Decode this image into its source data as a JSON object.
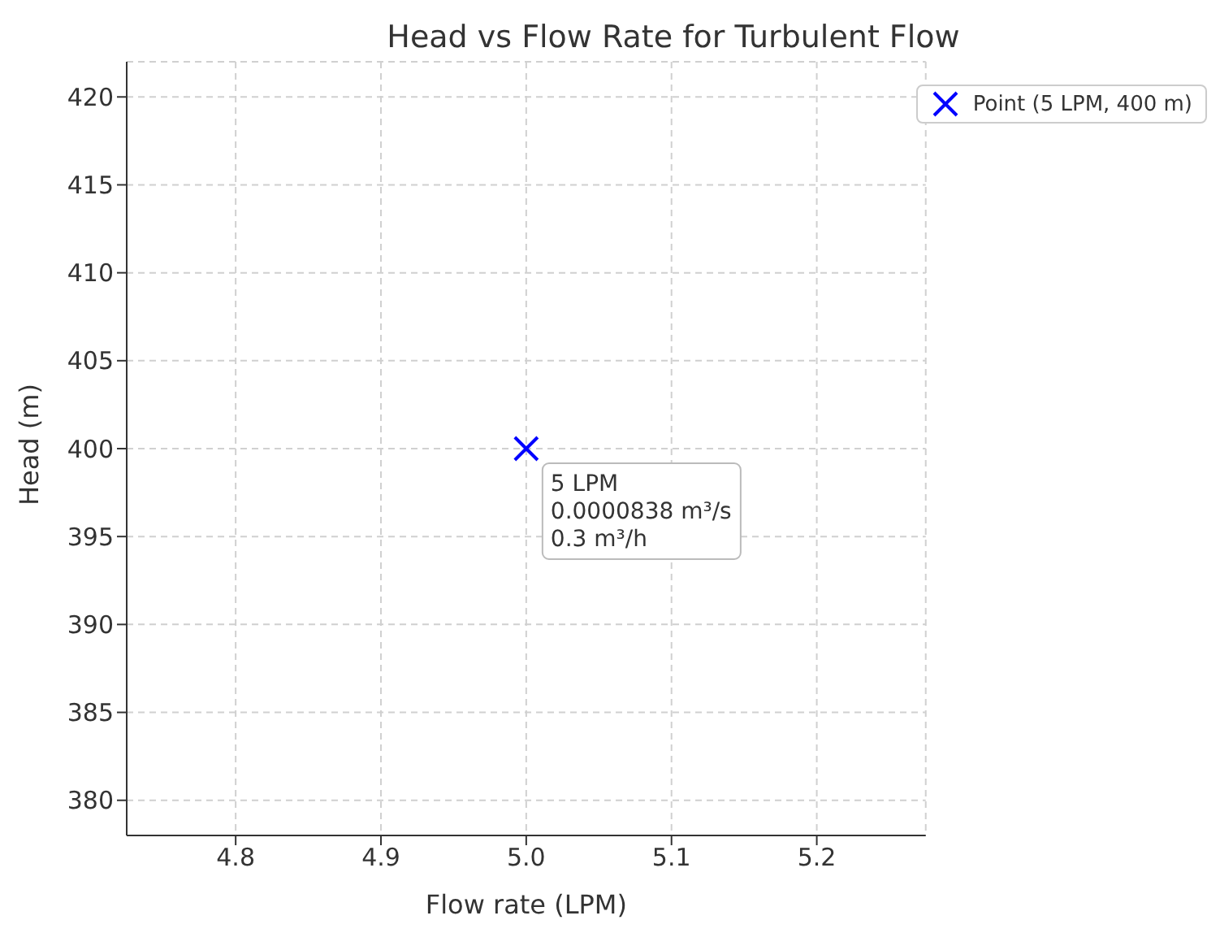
{
  "chart_data": {
    "type": "scatter",
    "title": "Head vs Flow Rate for Turbulent Flow",
    "xlabel": "Flow rate (LPM)",
    "ylabel": "Head (m)",
    "x": [
      5.0
    ],
    "series": [
      {
        "name": "Point (5 LPM, 400 m)",
        "color": "#0000ff",
        "values": [
          400
        ]
      }
    ],
    "xlim": [
      4.725,
      5.275
    ],
    "xticks": [
      4.8,
      4.9,
      {
        "value": 5,
        "label": "5.0"
      },
      5.1,
      5.2
    ],
    "ylim": [
      378,
      422
    ],
    "yticks": [
      380,
      385,
      390,
      395,
      400,
      405,
      410,
      415,
      420
    ],
    "annotations": [
      {
        "text": "5 LPM\n0.0000838 m³/s\n0.3 m³/h",
        "x": 5.0,
        "y": 400
      }
    ],
    "grid": true,
    "legend": "top right",
    "marker": "cross"
  }
}
